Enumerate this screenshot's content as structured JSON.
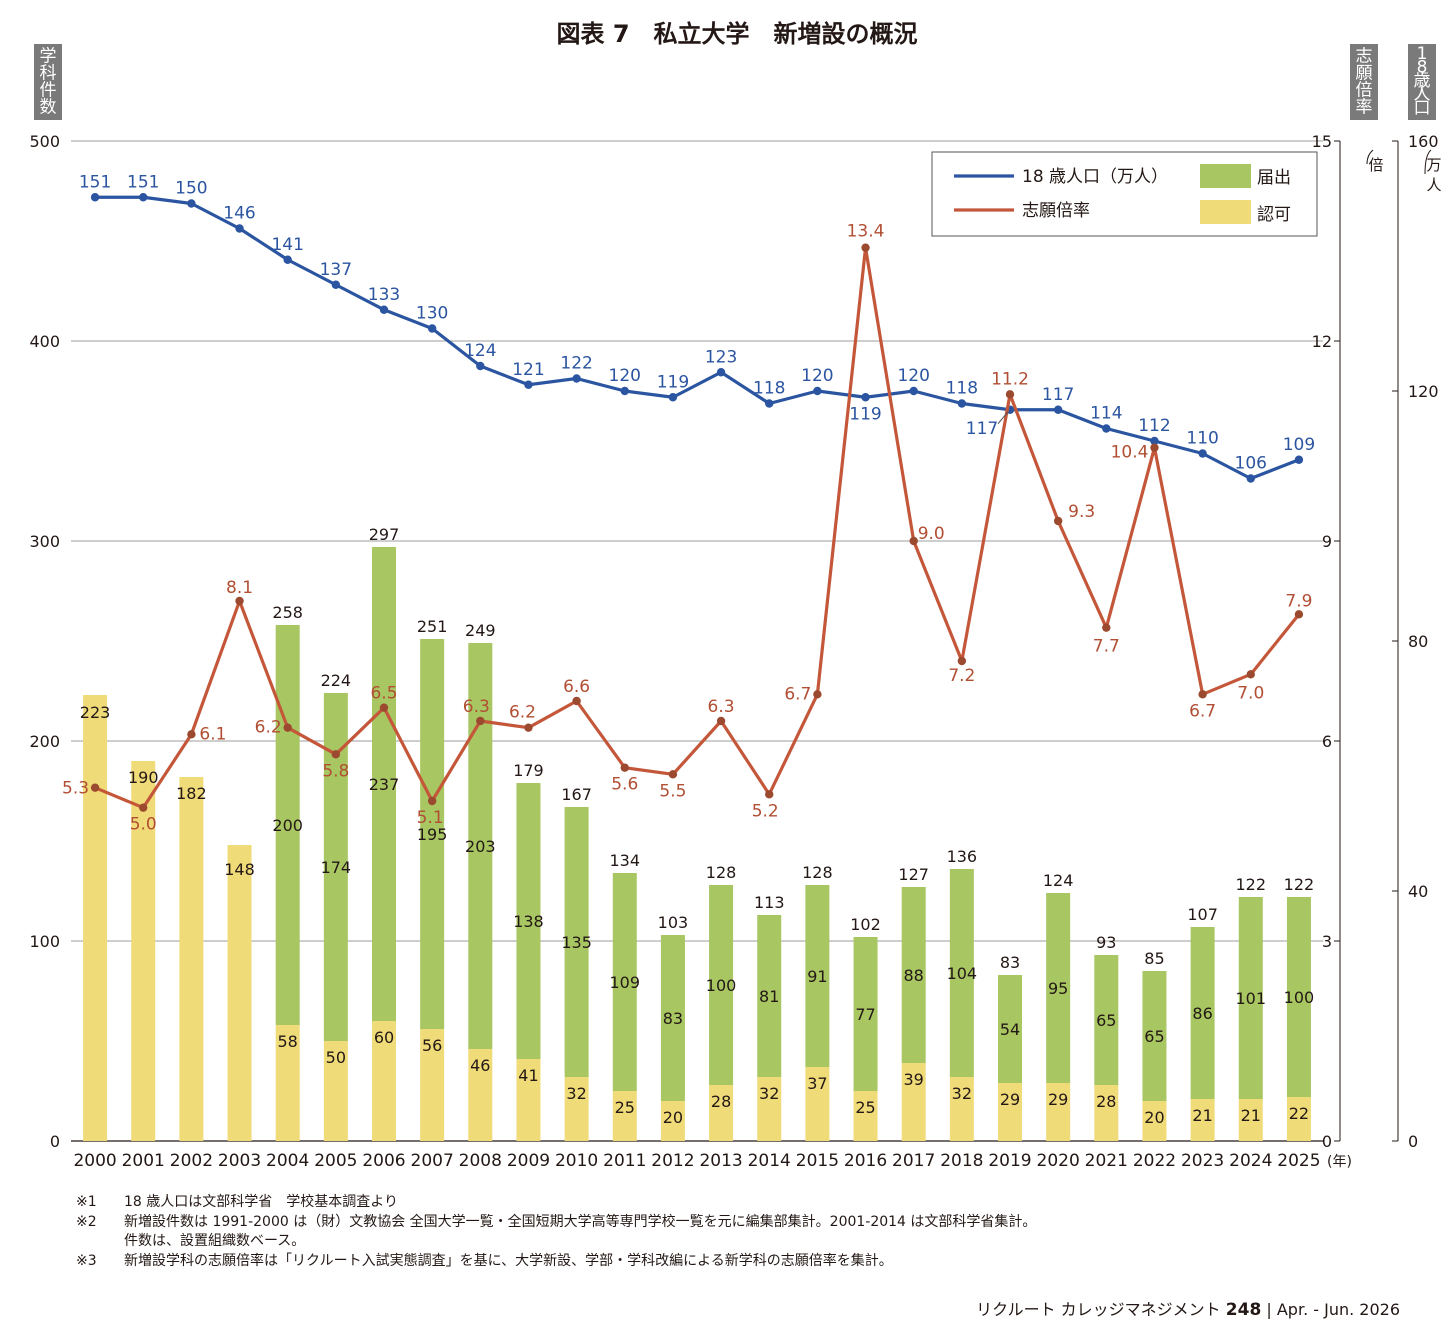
{
  "chart_data": {
    "type": "bar",
    "title": "図表 7　私立大学　新増設の概況",
    "left_axis_label": "学科件数",
    "rate_axis_label": "志願倍率",
    "rate_axis_unit": "(倍)",
    "pop_axis_label": "18歳人口",
    "pop_axis_unit": "(万人)",
    "x_unit": "(年)",
    "categories": [
      "2000",
      "2001",
      "2002",
      "2003",
      "2004",
      "2005",
      "2006",
      "2007",
      "2008",
      "2009",
      "2010",
      "2011",
      "2012",
      "2013",
      "2014",
      "2015",
      "2016",
      "2017",
      "2018",
      "2019",
      "2020",
      "2021",
      "2022",
      "2023",
      "2024",
      "2025"
    ],
    "left_axis": {
      "ylim": [
        0,
        500
      ],
      "ticks": [
        0,
        100,
        200,
        300,
        400,
        500
      ]
    },
    "rate_axis": {
      "ylim": [
        0,
        15
      ],
      "ticks": [
        0,
        3,
        6,
        9,
        12,
        15
      ]
    },
    "pop_axis": {
      "ylim": [
        0,
        160
      ],
      "ticks": [
        0,
        40,
        80,
        120,
        160
      ]
    },
    "grid": true,
    "legend_position": "top-right",
    "legend": {
      "population": "18 歳人口（万人）",
      "rate": "志願倍率",
      "notification": "届出",
      "approval": "認可"
    },
    "colors": {
      "population": "#2b55a0",
      "rate": "#c4573a",
      "notification": "#a8c662",
      "approval": "#f0db79",
      "pop_label": "#2b55a0",
      "rate_label": "#b14e33"
    },
    "series": [
      {
        "name": "認可",
        "axis": "left",
        "kind": "bar",
        "values": [
          223,
          190,
          182,
          148,
          58,
          50,
          60,
          56,
          46,
          41,
          32,
          25,
          20,
          28,
          32,
          37,
          25,
          39,
          32,
          29,
          29,
          28,
          20,
          21,
          21,
          22
        ]
      },
      {
        "name": "届出",
        "axis": "left",
        "kind": "bar",
        "values": [
          0,
          0,
          0,
          0,
          200,
          174,
          237,
          195,
          203,
          138,
          135,
          109,
          83,
          100,
          81,
          91,
          77,
          88,
          104,
          54,
          95,
          65,
          65,
          86,
          101,
          100
        ]
      },
      {
        "name": "18 歳人口（万人）",
        "axis": "pop",
        "kind": "line",
        "values": [
          151,
          151,
          150,
          146,
          141,
          137,
          133,
          130,
          124,
          121,
          122,
          120,
          119,
          123,
          118,
          120,
          119,
          120,
          118,
          117,
          117,
          114,
          112,
          110,
          106,
          109
        ]
      },
      {
        "name": "志願倍率",
        "axis": "rate",
        "kind": "line",
        "values": [
          5.3,
          5.0,
          6.1,
          8.1,
          6.2,
          5.8,
          6.5,
          5.1,
          6.3,
          6.2,
          6.6,
          5.6,
          5.5,
          6.3,
          5.2,
          6.7,
          13.4,
          9.0,
          7.2,
          11.2,
          9.3,
          7.7,
          10.4,
          6.7,
          7.0,
          7.9
        ]
      }
    ],
    "totals": [
      223,
      190,
      182,
      148,
      258,
      224,
      297,
      251,
      249,
      179,
      167,
      134,
      103,
      128,
      113,
      128,
      102,
      127,
      136,
      83,
      124,
      93,
      85,
      107,
      122,
      122
    ],
    "rate_labels": [
      "5.3",
      "5.0",
      "6.1",
      "8.1",
      "6.2",
      "5.8",
      "6.5",
      "5.1",
      "6.3",
      "6.2",
      "6.6",
      "5.6",
      "5.5",
      "6.3",
      "5.2",
      "6.7",
      "13.4",
      "9.0",
      "7.2",
      "11.2",
      "9.3",
      "7.7",
      "10.4",
      "6.7",
      "7.0",
      "7.9"
    ]
  },
  "notes": [
    {
      "mark": "※1",
      "text": "18 歳人口は文部科学省　学校基本調査より"
    },
    {
      "mark": "※2",
      "text": "新増設件数は 1991-2000 は（財）文教協会 全国大学一覧・全国短期大学高等専門学校一覧を元に編集部集計。2001-2014 は文部科学省集計。"
    },
    {
      "mark": "",
      "text": "件数は、設置組織数ベース。"
    },
    {
      "mark": "※3",
      "text": "新増設学科の志願倍率は「リクルート入試実態調査」を基に、大学新設、学部・学科改編による新学科の志願倍率を集計。"
    }
  ],
  "footer": {
    "publication": "リクルート カレッジマネジメント",
    "page": "248",
    "separator": "|",
    "issue": "Apr. - Jun. 2026"
  }
}
